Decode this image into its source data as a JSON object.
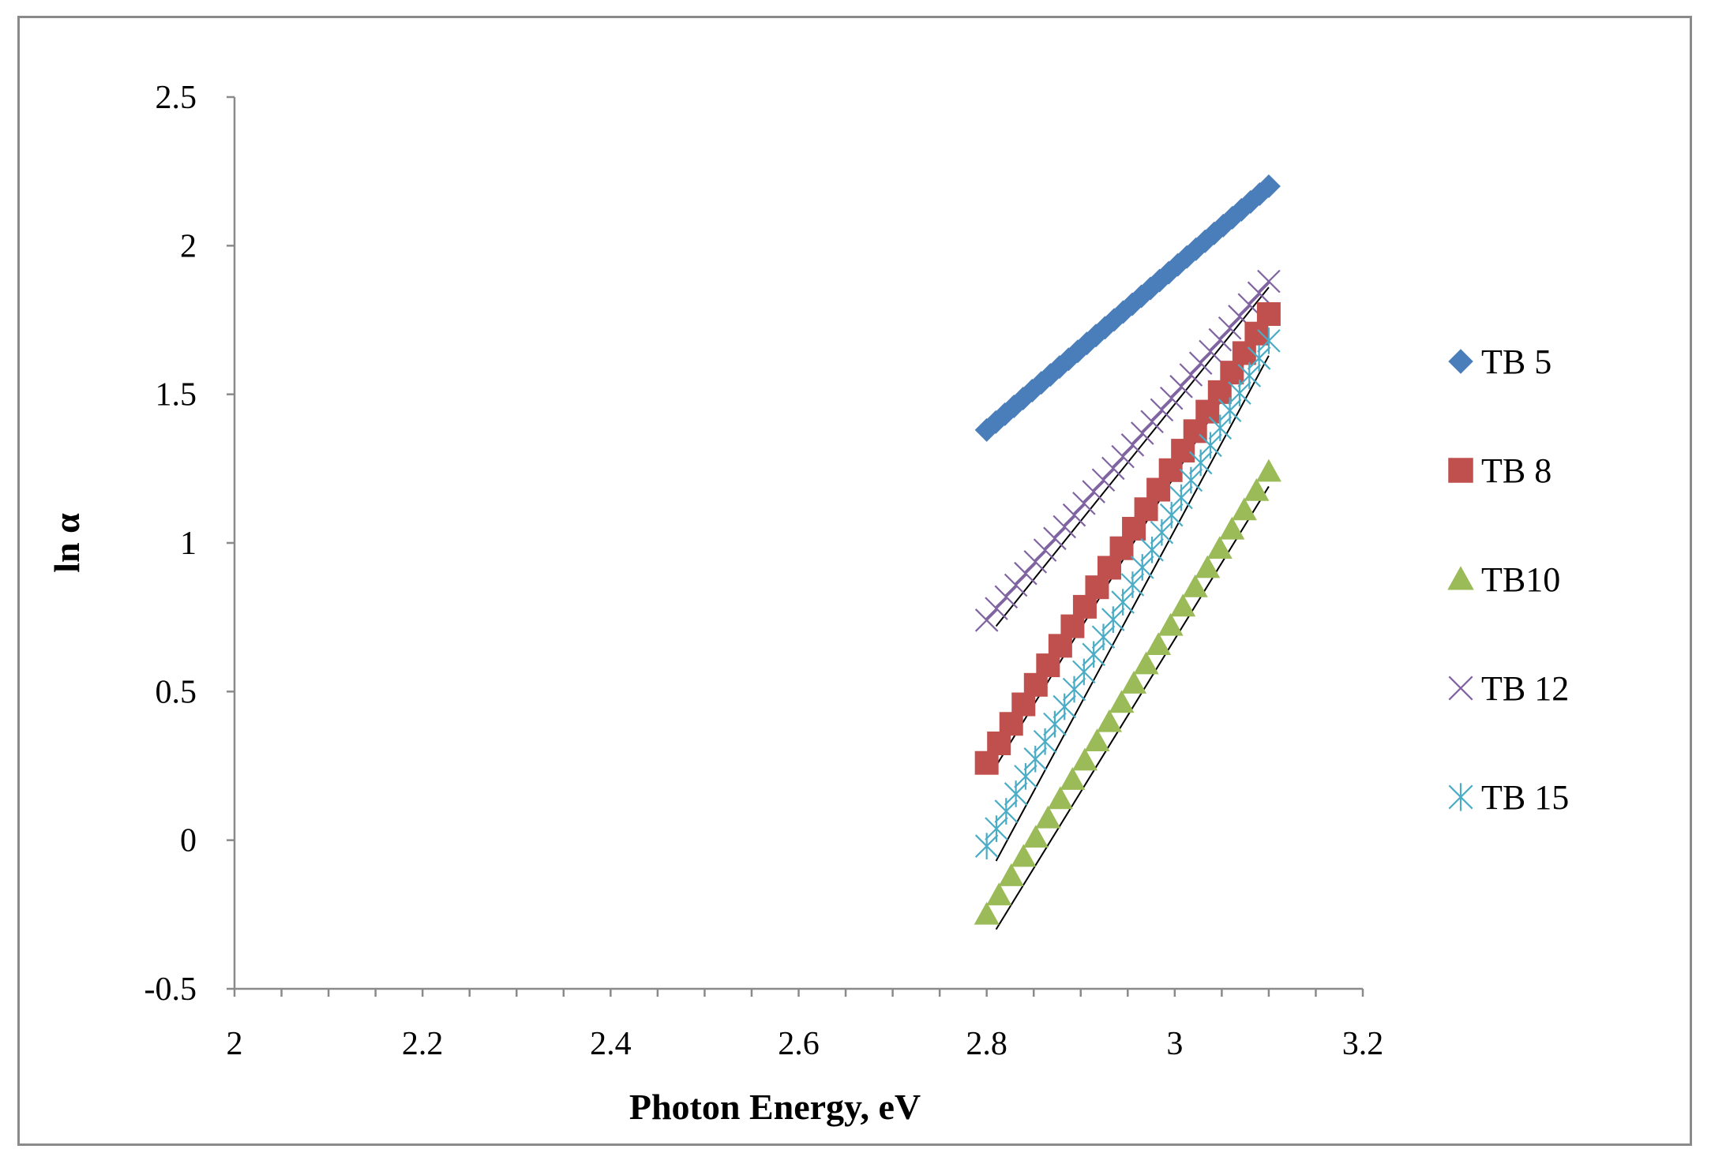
{
  "chart_data": {
    "type": "scatter",
    "title": "",
    "xlabel": "Photon Energy, eV",
    "ylabel": "ln α",
    "xlim": [
      2,
      3.2
    ],
    "ylim": [
      -0.5,
      2.5
    ],
    "xticks": [
      2,
      2.2,
      2.4,
      2.6,
      2.8,
      3,
      3.2
    ],
    "xtick_labels": [
      "2",
      "2.2",
      "2.4",
      "2.6",
      "2.8",
      "3",
      "3.2"
    ],
    "yticks": [
      -0.5,
      0,
      0.5,
      1,
      1.5,
      2,
      2.5
    ],
    "ytick_labels": [
      "-0.5",
      "0",
      "0.5",
      "1",
      "1.5",
      "2",
      "2.5"
    ],
    "grid": false,
    "legend_position": "right",
    "trendlines": true,
    "series": [
      {
        "name": "TB 5",
        "marker": "diamond",
        "color": "#4a7ebb",
        "x_start": 2.8,
        "x_end": 3.1,
        "n_points": 32,
        "y_start": 1.38,
        "y_end": 2.2,
        "fit": [
          [
            2.81,
            1.38
          ],
          [
            3.1,
            2.18
          ]
        ]
      },
      {
        "name": "TB 8",
        "marker": "square",
        "color": "#c0504d",
        "x_start": 2.8,
        "x_end": 3.1,
        "n_points": 24,
        "y_start": 0.26,
        "y_end": 1.77,
        "fit": [
          [
            2.81,
            0.25
          ],
          [
            3.1,
            1.74
          ]
        ]
      },
      {
        "name": "TB10",
        "marker": "triangle",
        "color": "#9bbb59",
        "x_start": 2.8,
        "x_end": 3.1,
        "n_points": 24,
        "y_start": -0.25,
        "y_end": 1.24,
        "fit": [
          [
            2.81,
            -0.3
          ],
          [
            3.1,
            1.19
          ]
        ]
      },
      {
        "name": "TB 12",
        "marker": "x",
        "color": "#8064a2",
        "x_start": 2.8,
        "x_end": 3.1,
        "n_points": 30,
        "y_start": 0.74,
        "y_end": 1.88,
        "fit": [
          [
            2.81,
            0.72
          ],
          [
            3.1,
            1.86
          ]
        ]
      },
      {
        "name": "TB 15",
        "marker": "star",
        "color": "#4bacc6",
        "x_start": 2.8,
        "x_end": 3.1,
        "n_points": 30,
        "y_start": -0.02,
        "y_end": 1.68,
        "fit": [
          [
            2.81,
            -0.07
          ],
          [
            3.1,
            1.63
          ]
        ]
      }
    ]
  }
}
